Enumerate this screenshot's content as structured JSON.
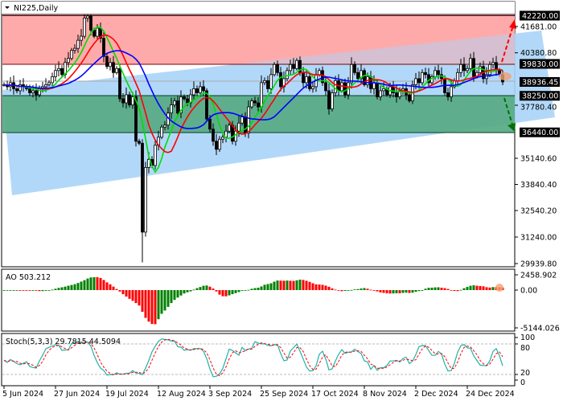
{
  "header": {
    "symbol_label": "NI225,Daily",
    "menu_icon": "triangle-down-icon"
  },
  "colors": {
    "resistance_zone": "#ffaaaa",
    "support_zone": "#5aac88",
    "channel": "#aad4f8",
    "ma_fast": "#00dd00",
    "ma_mid": "#ff0000",
    "ma_slow": "#0000ff",
    "ao_up": "#008000",
    "ao_down": "#ff0000",
    "stoch_main": "#20b2aa",
    "stoch_signal": "#ff0000"
  },
  "chart_data": [
    {
      "type": "candlestick",
      "title": "NI225,Daily",
      "ylim": [
        29939.8,
        42500
      ],
      "y_ticks": [
        "41681.00",
        "40380.80",
        "37780.40",
        "35140.60",
        "33840.40",
        "32540.20",
        "31240.00",
        "29939.80"
      ],
      "price_tags": [
        "42220.00",
        "39830.00",
        "38936.45",
        "38250.00",
        "36440.00"
      ],
      "levels": {
        "resistance_top": 42220,
        "resistance": 39830,
        "current": 38936.45,
        "support": 38250,
        "support_bottom": 36440
      },
      "x_ticks": [
        {
          "bar": 0,
          "label": "5 Jun 2024"
        },
        {
          "bar": 16,
          "label": "27 Jun 2024"
        },
        {
          "bar": 32,
          "label": "19 Jul 2024"
        },
        {
          "bar": 48,
          "label": "12 Aug 2024"
        },
        {
          "bar": 64,
          "label": "3 Sep 2024"
        },
        {
          "bar": 80,
          "label": "25 Sep 2024"
        },
        {
          "bar": 96,
          "label": "17 Oct 2024"
        },
        {
          "bar": 112,
          "label": "8 Nov 2024"
        },
        {
          "bar": 128,
          "label": "2 Dec 2024"
        },
        {
          "bar": 144,
          "label": "24 Dec 2024"
        }
      ],
      "closes": [
        38800,
        38700,
        38900,
        38600,
        38500,
        38800,
        38700,
        38600,
        38400,
        38500,
        38300,
        38600,
        38700,
        38800,
        38900,
        39200,
        39500,
        39600,
        39300,
        39900,
        40100,
        40500,
        40600,
        41000,
        41200,
        42100,
        42200,
        41500,
        41200,
        41600,
        41100,
        40200,
        39700,
        39900,
        39400,
        39600,
        38100,
        37900,
        38300,
        37800,
        38200,
        36000,
        35900,
        31500,
        34700,
        35100,
        34800,
        35800,
        36200,
        36700,
        36800,
        37400,
        37800,
        38000,
        37400,
        38200,
        38100,
        37900,
        38300,
        38600,
        38400,
        38700,
        38500,
        37100,
        36600,
        36000,
        35600,
        36100,
        36200,
        36500,
        36800,
        36000,
        36500,
        36900,
        37200,
        36400,
        37700,
        38000,
        37900,
        37700,
        38900,
        39000,
        38600,
        39300,
        39800,
        39400,
        38700,
        39100,
        39500,
        39800,
        39600,
        40000,
        39400,
        38900,
        39200,
        38600,
        38700,
        39300,
        39500,
        38900,
        38500,
        37600,
        38400,
        39000,
        38500,
        38900,
        38300,
        38900,
        39800,
        39400,
        39100,
        39500,
        38800,
        39200,
        38600,
        38900,
        38200,
        38500,
        38600,
        38300,
        38700,
        38400,
        38200,
        38500,
        38600,
        38300,
        38000,
        38800,
        39100,
        38900,
        39400,
        39300,
        38900,
        39200,
        39500,
        39300,
        39100,
        38400,
        38200,
        38700,
        39000,
        39400,
        39800,
        39500,
        39600,
        40100,
        39200,
        39400,
        39700,
        39100,
        39300,
        39800,
        39900,
        39500,
        39300,
        38936.45
      ],
      "spike_low": {
        "bar": 43,
        "low": 30000
      }
    },
    {
      "type": "bar",
      "title": "AO 503.212",
      "indicator": "Awesome Oscillator",
      "y_ticks": [
        "2458.902",
        "0.00",
        "-5144.026"
      ],
      "ylim": [
        -5144.026,
        2458.902
      ]
    },
    {
      "type": "line",
      "title": "Stoch(5,3,3) 29.7815 44.5094",
      "indicator": "Stochastic",
      "y_ticks": [
        "100",
        "80",
        "20",
        "0"
      ],
      "ylim": [
        0,
        100
      ],
      "levels": [
        80,
        20
      ]
    }
  ]
}
